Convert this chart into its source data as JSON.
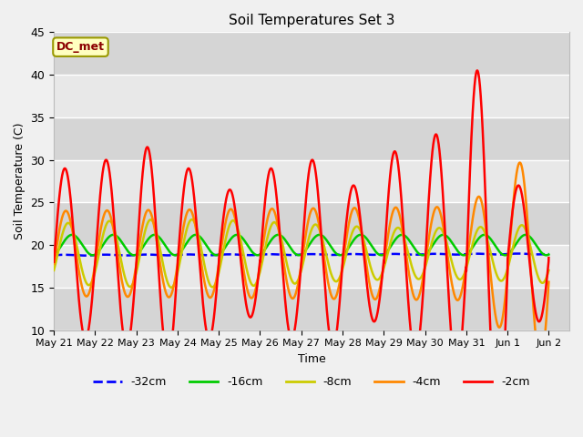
{
  "title": "Soil Temperatures Set 3",
  "xlabel": "Time",
  "ylabel": "Soil Temperature (C)",
  "ylim": [
    10,
    45
  ],
  "annotation": "DC_met",
  "legend": [
    "-32cm",
    "-16cm",
    "-8cm",
    "-4cm",
    "-2cm"
  ],
  "line_colors": [
    "#0000ff",
    "#00cc00",
    "#cccc00",
    "#ff8800",
    "#ff0000"
  ],
  "x_tick_labels": [
    "May 21",
    "May 22",
    "May 23",
    "May 24",
    "May 25",
    "May 26",
    "May 27",
    "May 28",
    "May 29",
    "May 30",
    "May 31",
    "Jun 1",
    "Jun 2"
  ],
  "x_tick_positions": [
    0,
    1,
    2,
    3,
    4,
    5,
    6,
    7,
    8,
    9,
    10,
    11,
    12
  ]
}
